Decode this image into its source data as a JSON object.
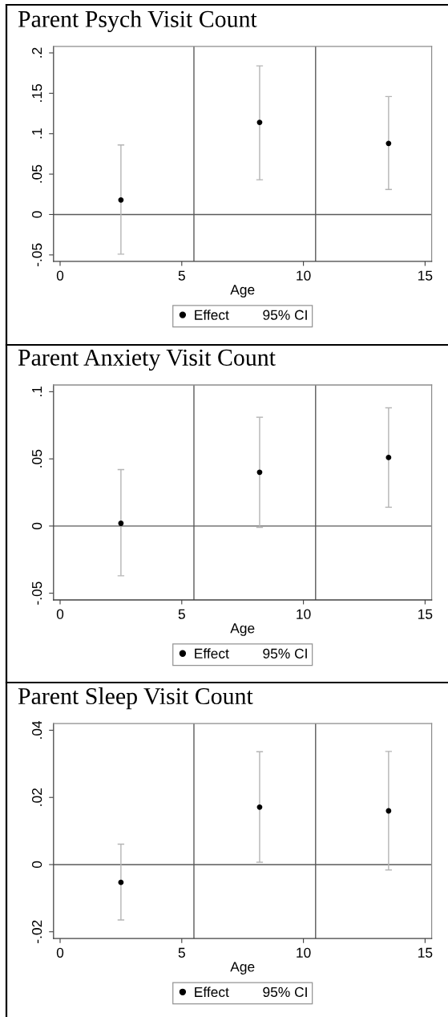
{
  "chart_data": [
    {
      "type": "scatter",
      "title": "Parent Psych Visit Count",
      "xlabel": "Age",
      "x": [
        2.5,
        8.2,
        13.5
      ],
      "series": [
        {
          "name": "Effect",
          "color": "#000000",
          "values": [
            0.018,
            0.114,
            0.088
          ],
          "errors": [
            [
              -0.049,
              0.086
            ],
            [
              0.043,
              0.184
            ],
            [
              0.031,
              0.146
            ]
          ]
        }
      ],
      "xlim": [
        -0.27,
        15.27
      ],
      "ylim": [
        -0.058,
        0.208
      ],
      "xticks": [
        0,
        5,
        10,
        15
      ],
      "yticks": [
        {
          "value": -0.05,
          "label": "-.05"
        },
        0,
        {
          "value": 0.05,
          "label": ".05"
        },
        {
          "value": 0.1,
          "label": ".1"
        },
        {
          "value": 0.15,
          "label": ".15"
        },
        {
          "value": 0.2,
          "label": ".2"
        }
      ],
      "ref_lines": [
        {
          "axis": "x",
          "value": 5.5,
          "color": "#5a5a5a"
        },
        {
          "axis": "x",
          "value": 10.5,
          "color": "#5a5a5a"
        },
        {
          "axis": "y",
          "value": 0,
          "color": "#5a5a5a"
        }
      ],
      "grid": false,
      "legend": "bottom",
      "marker": "circle",
      "annotations": [
        "95% CI"
      ]
    },
    {
      "type": "scatter",
      "title": "Parent Anxiety Visit Count",
      "xlabel": "Age",
      "x": [
        2.5,
        8.2,
        13.5
      ],
      "series": [
        {
          "name": "Effect",
          "color": "#000000",
          "values": [
            0.002,
            0.04,
            0.051
          ],
          "errors": [
            [
              -0.037,
              0.042
            ],
            [
              -0.001,
              0.081
            ],
            [
              0.014,
              0.088
            ]
          ]
        }
      ],
      "xlim": [
        -0.27,
        15.27
      ],
      "ylim": [
        -0.055,
        0.105
      ],
      "xticks": [
        0,
        5,
        10,
        15
      ],
      "yticks": [
        {
          "value": -0.05,
          "label": "-.05"
        },
        0,
        {
          "value": 0.05,
          "label": ".05"
        },
        {
          "value": 0.1,
          "label": ".1"
        }
      ],
      "ref_lines": [
        {
          "axis": "x",
          "value": 5.5,
          "color": "#5a5a5a"
        },
        {
          "axis": "x",
          "value": 10.5,
          "color": "#5a5a5a"
        },
        {
          "axis": "y",
          "value": 0,
          "color": "#5a5a5a"
        }
      ],
      "grid": false,
      "legend": "bottom",
      "marker": "circle",
      "annotations": [
        "95% CI"
      ]
    },
    {
      "type": "scatter",
      "title": "Parent Sleep Visit Count",
      "xlabel": "Age",
      "x": [
        2.5,
        8.2,
        13.5
      ],
      "series": [
        {
          "name": "Effect",
          "color": "#000000",
          "values": [
            -0.0053,
            0.0171,
            0.016
          ],
          "errors": [
            [
              -0.0165,
              0.0061
            ],
            [
              0.0007,
              0.0336
            ],
            [
              -0.0016,
              0.0337
            ]
          ]
        }
      ],
      "xlim": [
        -0.27,
        15.27
      ],
      "ylim": [
        -0.022,
        0.042
      ],
      "xticks": [
        0,
        5,
        10,
        15
      ],
      "yticks": [
        {
          "value": -0.02,
          "label": "-.02"
        },
        0,
        {
          "value": 0.02,
          "label": ".02"
        },
        {
          "value": 0.04,
          "label": ".04"
        }
      ],
      "ref_lines": [
        {
          "axis": "x",
          "value": 5.5,
          "color": "#5a5a5a"
        },
        {
          "axis": "x",
          "value": 10.5,
          "color": "#5a5a5a"
        },
        {
          "axis": "y",
          "value": 0,
          "color": "#5a5a5a"
        }
      ],
      "grid": false,
      "legend": "bottom",
      "marker": "circle",
      "annotations": [
        "95% CI"
      ]
    }
  ]
}
